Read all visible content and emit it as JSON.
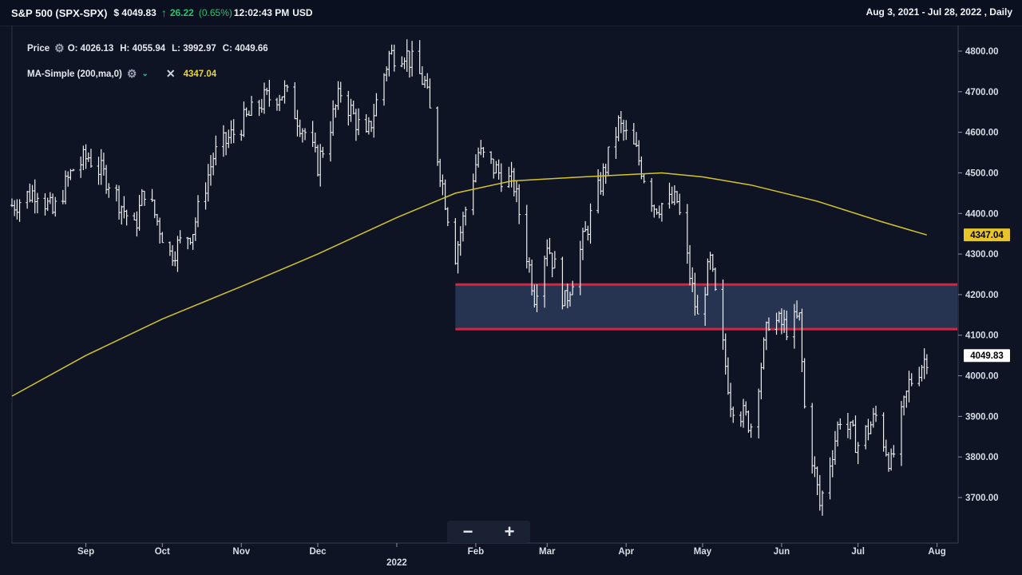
{
  "header": {
    "symbol": "S&P 500 (SPX-SPX)",
    "price": "$ 4049.83",
    "change": "26.22",
    "change_pct": "(0.65%)",
    "time": "12:02:43 PM",
    "currency": "USD",
    "range": "Aug 3, 2021 - Jul 28, 2022 , Daily",
    "up_color": "#27c46b"
  },
  "legend": {
    "price_label": "Price",
    "open": "O: 4026.13",
    "high": "H: 4055.94",
    "low": "L: 3992.97",
    "close": "C: 4049.66",
    "ma_label": "MA-Simple (200,ma,0)",
    "ma_value": "4347.04",
    "gear_icon": "gear-icon",
    "close_icon": "close-icon"
  },
  "zoom": {
    "minus": "−",
    "plus": "+"
  },
  "chart_data": {
    "type": "line",
    "title": "",
    "x_range": [
      "2021-08-03",
      "2022-07-28"
    ],
    "ylim": [
      3620,
      4840
    ],
    "y_ticks": [
      4800,
      4700,
      4600,
      4500,
      4400,
      4300,
      4200,
      4100,
      4000,
      3900,
      3800,
      3700
    ],
    "y_tick_labels": [
      "4800.00",
      "4700.00",
      "4600.00",
      "4500.00",
      "4400.00",
      "4300.00",
      "4200.00",
      "4100.00",
      "4000.00",
      "3900.00",
      "3800.00",
      "3700.00"
    ],
    "x_ticks": [
      {
        "date": "2021-09-01",
        "label": "Sep"
      },
      {
        "date": "2021-10-01",
        "label": "Oct"
      },
      {
        "date": "2021-11-01",
        "label": "Nov"
      },
      {
        "date": "2021-12-01",
        "label": "Dec"
      },
      {
        "date": "2022-01-01",
        "label": "2022"
      },
      {
        "date": "2022-02-01",
        "label": "Feb"
      },
      {
        "date": "2022-03-01",
        "label": "Mar"
      },
      {
        "date": "2022-04-01",
        "label": "Apr"
      },
      {
        "date": "2022-05-01",
        "label": "May"
      },
      {
        "date": "2022-06-01",
        "label": "Jun"
      },
      {
        "date": "2022-07-01",
        "label": "Jul"
      },
      {
        "date": "2022-08-01",
        "label": "Aug"
      }
    ],
    "series": [
      {
        "name": "Price",
        "color": "#ffffff",
        "points": [
          [
            "2021-08-03",
            4420
          ],
          [
            "2021-08-13",
            4460
          ],
          [
            "2021-08-19",
            4400
          ],
          [
            "2021-08-27",
            4510
          ],
          [
            "2021-09-02",
            4540
          ],
          [
            "2021-09-10",
            4480
          ],
          [
            "2021-09-20",
            4360
          ],
          [
            "2021-09-24",
            4460
          ],
          [
            "2021-10-01",
            4350
          ],
          [
            "2021-10-04",
            4300
          ],
          [
            "2021-10-13",
            4360
          ],
          [
            "2021-10-21",
            4540
          ],
          [
            "2021-11-01",
            4620
          ],
          [
            "2021-11-10",
            4680
          ],
          [
            "2021-11-18",
            4700
          ],
          [
            "2021-11-26",
            4600
          ],
          [
            "2021-12-01",
            4520
          ],
          [
            "2021-12-10",
            4700
          ],
          [
            "2021-12-20",
            4580
          ],
          [
            "2021-12-29",
            4790
          ],
          [
            "2022-01-04",
            4800
          ],
          [
            "2022-01-12",
            4720
          ],
          [
            "2022-01-21",
            4400
          ],
          [
            "2022-01-24",
            4300
          ],
          [
            "2022-02-02",
            4550
          ],
          [
            "2022-02-10",
            4500
          ],
          [
            "2022-02-16",
            4470
          ],
          [
            "2022-02-24",
            4200
          ],
          [
            "2022-03-01",
            4330
          ],
          [
            "2022-03-08",
            4180
          ],
          [
            "2022-03-16",
            4350
          ],
          [
            "2022-03-29",
            4620
          ],
          [
            "2022-04-05",
            4550
          ],
          [
            "2022-04-12",
            4420
          ],
          [
            "2022-04-21",
            4430
          ],
          [
            "2022-04-29",
            4140
          ],
          [
            "2022-05-04",
            4280
          ],
          [
            "2022-05-12",
            3940
          ],
          [
            "2022-05-20",
            3880
          ],
          [
            "2022-05-27",
            4140
          ],
          [
            "2022-06-03",
            4120
          ],
          [
            "2022-06-08",
            4140
          ],
          [
            "2022-06-10",
            3920
          ],
          [
            "2022-06-16",
            3680
          ],
          [
            "2022-06-24",
            3900
          ],
          [
            "2022-07-01",
            3830
          ],
          [
            "2022-07-08",
            3900
          ],
          [
            "2022-07-14",
            3780
          ],
          [
            "2022-07-21",
            3980
          ],
          [
            "2022-07-28",
            4049.83
          ]
        ]
      },
      {
        "name": "MA-Simple (200,ma,0)",
        "color": "#d4c42a",
        "points": [
          [
            "2021-08-03",
            3950
          ],
          [
            "2021-09-01",
            4050
          ],
          [
            "2021-10-01",
            4140
          ],
          [
            "2021-11-01",
            4220
          ],
          [
            "2021-12-01",
            4300
          ],
          [
            "2022-01-01",
            4390
          ],
          [
            "2022-01-24",
            4450
          ],
          [
            "2022-02-15",
            4480
          ],
          [
            "2022-03-15",
            4490
          ],
          [
            "2022-04-15",
            4500
          ],
          [
            "2022-05-01",
            4490
          ],
          [
            "2022-05-20",
            4470
          ],
          [
            "2022-06-15",
            4430
          ],
          [
            "2022-07-10",
            4380
          ],
          [
            "2022-07-28",
            4347.04
          ]
        ]
      }
    ],
    "annotations": [
      {
        "type": "zone",
        "y_from": 4115,
        "y_to": 4225,
        "x_from": "2022-01-24",
        "x_to": "2022-08-01",
        "border_color": "#e0203c",
        "fill_color": "#2a3a5a"
      }
    ],
    "current_labels": [
      {
        "value": "4347.04",
        "y": 4347.04,
        "background": "#e6c42a",
        "color": "#000000"
      },
      {
        "value": "4049.83",
        "y": 4049.83,
        "background": "#ffffff",
        "color": "#000000"
      }
    ],
    "grid": false,
    "xlabel": "",
    "ylabel": ""
  }
}
